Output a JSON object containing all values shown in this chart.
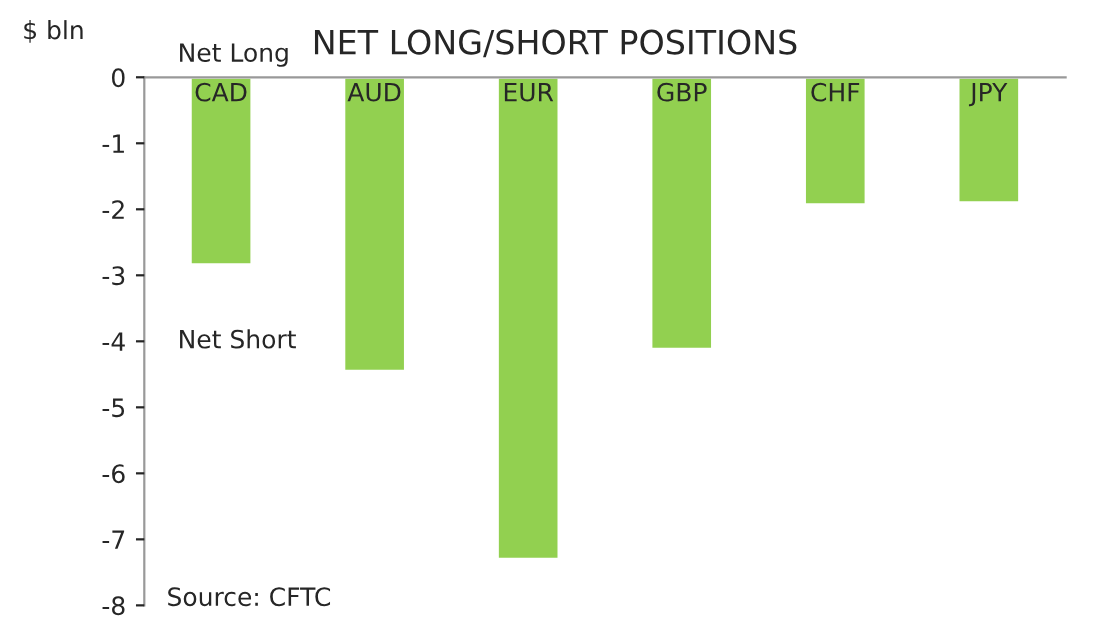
{
  "chart_data": {
    "type": "bar",
    "title": "NET LONG/SHORT POSITIONS",
    "ylabel": "$ bln",
    "categories": [
      "CAD",
      "AUD",
      "EUR",
      "GBP",
      "CHF",
      "JPY"
    ],
    "values": [
      -2.84,
      -4.45,
      -7.3,
      -4.12,
      -1.93,
      -1.9
    ],
    "color": "#92d050",
    "ylim": [
      -8,
      0
    ],
    "yticks": [
      -8,
      -7,
      -6,
      -5,
      -4,
      -3,
      -2,
      -1,
      0
    ],
    "grid": false,
    "annotations": [
      "Net Long",
      "Net Short",
      "Source: CFTC"
    ]
  }
}
